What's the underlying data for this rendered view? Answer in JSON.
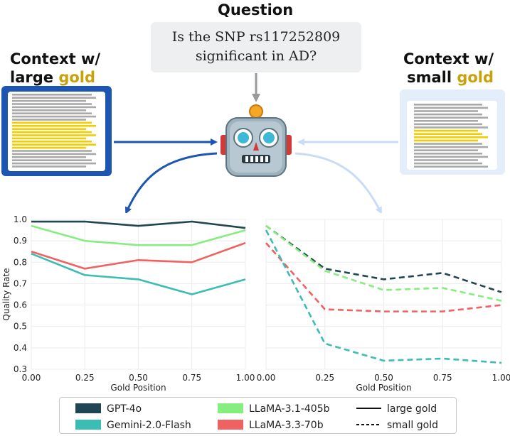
{
  "question": {
    "title": "Question",
    "line1": "Is the SNP rs117252809",
    "line2": "significant in AD?"
  },
  "left_context": {
    "line1": "Context w/",
    "line2_prefix": "large ",
    "line2_gold": "gold"
  },
  "right_context": {
    "line1": "Context w/",
    "line2_prefix": "small ",
    "line2_gold": "gold"
  },
  "robot_icon": "robot-icon",
  "colors": {
    "gpt4o": "#1f4652",
    "gemini": "#3bbdb3",
    "llama405": "#86ee7f",
    "llama70": "#f06262",
    "large_gold_blue": "#1d55b3",
    "small_gold_blue": "#c9dcf6",
    "gold": "#c9a20a"
  },
  "chart_data": [
    {
      "type": "line",
      "style": "solid",
      "x": [
        0.0,
        0.25,
        0.5,
        0.75,
        1.0
      ],
      "xlabel": "Gold Position",
      "ylabel": "Quality Rate",
      "ylim": [
        0.3,
        1.0
      ],
      "xticks": [
        "0.00",
        "0.25",
        "0.50",
        "0.75",
        "1.00"
      ],
      "yticks": [
        "0.3",
        "0.4",
        "0.5",
        "0.6",
        "0.7",
        "0.8",
        "0.9",
        "1.0"
      ],
      "grid": true,
      "series": [
        {
          "name": "GPT-4o",
          "color": "#1f4652",
          "values": [
            0.99,
            0.99,
            0.97,
            0.99,
            0.96
          ]
        },
        {
          "name": "LLaMA-3.1-405b",
          "color": "#86ee7f",
          "values": [
            0.97,
            0.9,
            0.88,
            0.88,
            0.95
          ]
        },
        {
          "name": "LLaMA-3.3-70b",
          "color": "#f06262",
          "values": [
            0.85,
            0.77,
            0.81,
            0.8,
            0.89
          ]
        },
        {
          "name": "Gemini-2.0-Flash",
          "color": "#3bbdb3",
          "values": [
            0.84,
            0.74,
            0.72,
            0.65,
            0.72
          ]
        }
      ]
    },
    {
      "type": "line",
      "style": "dashed",
      "x": [
        0.0,
        0.25,
        0.5,
        0.75,
        1.0
      ],
      "xlabel": "Gold Position",
      "ylabel": "",
      "ylim": [
        0.3,
        1.0
      ],
      "xticks": [
        "0.00",
        "0.25",
        "0.50",
        "0.75",
        "1.00"
      ],
      "grid": true,
      "series": [
        {
          "name": "GPT-4o",
          "color": "#1f4652",
          "values": [
            0.97,
            0.77,
            0.72,
            0.75,
            0.66
          ]
        },
        {
          "name": "LLaMA-3.1-405b",
          "color": "#86ee7f",
          "values": [
            0.97,
            0.76,
            0.67,
            0.68,
            0.62
          ]
        },
        {
          "name": "LLaMA-3.3-70b",
          "color": "#f06262",
          "values": [
            0.89,
            0.58,
            0.57,
            0.57,
            0.6
          ]
        },
        {
          "name": "Gemini-2.0-Flash",
          "color": "#3bbdb3",
          "values": [
            0.95,
            0.42,
            0.34,
            0.35,
            0.33
          ]
        }
      ]
    }
  ],
  "legend": {
    "items": [
      {
        "label": "GPT-4o",
        "color": "#1f4652"
      },
      {
        "label": "Gemini-2.0-Flash",
        "color": "#3bbdb3"
      },
      {
        "label": "LLaMA-3.1-405b",
        "color": "#86ee7f"
      },
      {
        "label": "LLaMA-3.3-70b",
        "color": "#f06262"
      }
    ],
    "line_styles": [
      {
        "label": "large gold",
        "style": "solid"
      },
      {
        "label": "small gold",
        "style": "dashed"
      }
    ]
  }
}
